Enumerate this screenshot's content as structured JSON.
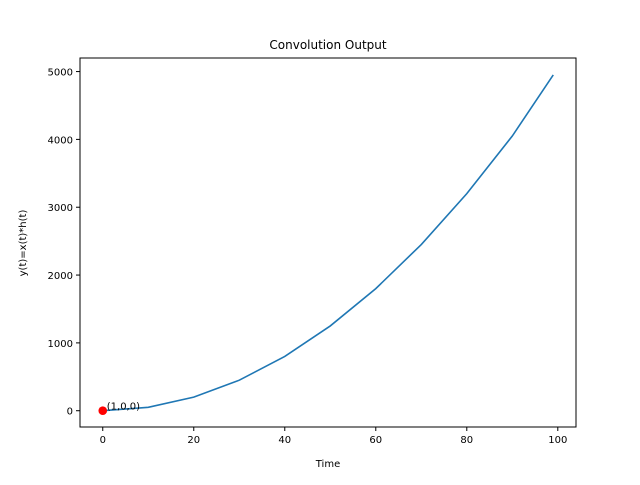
{
  "chart_data": {
    "type": "line",
    "title": "Convolution Output",
    "xlabel": "Time",
    "ylabel": "y(t)=x(t)*h(t)",
    "xlim": [
      -5,
      104
    ],
    "ylim": [
      -240,
      5200
    ],
    "x_ticks": [
      0,
      20,
      40,
      60,
      80,
      100
    ],
    "y_ticks": [
      0,
      1000,
      2000,
      3000,
      4000,
      5000
    ],
    "grid": false,
    "series": [
      {
        "color": "#1f77b4",
        "x": [
          0,
          10,
          20,
          30,
          40,
          50,
          60,
          70,
          80,
          90,
          99
        ],
        "y": [
          0,
          50,
          200,
          450,
          800,
          1250,
          1800,
          2450,
          3200,
          4050,
          4950
        ]
      }
    ],
    "marker": {
      "x": 0,
      "y": 0,
      "color": "#ff0000",
      "label": "(1,0,0)"
    }
  }
}
